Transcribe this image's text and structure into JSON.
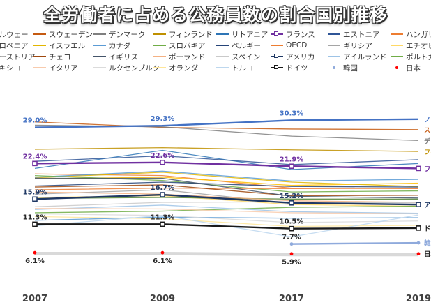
{
  "title": "全労働者に占める公務員数の割合国別推移",
  "chart_data": {
    "type": "line",
    "x": [
      "2007",
      "2009",
      "2017",
      "2019"
    ],
    "ylim": [
      0,
      38
    ],
    "grid": false,
    "legend_position": "top",
    "series": [
      {
        "name": "ノルウェー",
        "color": "#4472c4",
        "values": [
          29.0,
          29.3,
          30.3,
          30.5
        ],
        "end_label": "ノ",
        "labels": [
          "29.0%",
          "29.3%",
          "30.3%",
          null
        ]
      },
      {
        "name": "スウェーデン",
        "color": "#c55a11",
        "values": [
          30.0,
          29.0,
          28.7,
          28.6
        ],
        "end_label": "ス"
      },
      {
        "name": "デンマーク",
        "color": "#7f7f7f",
        "values": [
          29.4,
          29.1,
          27.4,
          26.6
        ],
        "end_label": "デ"
      },
      {
        "name": "フィンランド",
        "color": "#bf9000",
        "values": [
          25.0,
          25.3,
          24.9,
          24.6
        ],
        "end_label": "フィ"
      },
      {
        "name": "リトアニア",
        "color": "#2e75b6",
        "values": [
          21.5,
          24.8,
          21.3,
          22.4
        ]
      },
      {
        "name": "フランス",
        "color": "#7030a0",
        "values": [
          22.4,
          22.6,
          21.9,
          21.5
        ],
        "end_label": "フラ",
        "labels": [
          "22.4%",
          "22.6%",
          "21.9%",
          null
        ],
        "marker": "square"
      },
      {
        "name": "エストニア",
        "color": "#2f5597",
        "values": [
          22.8,
          23.8,
          22.2,
          23.1
        ]
      },
      {
        "name": "ハンガリー",
        "color": "#ed7d31",
        "values": [
          20.5,
          20.2,
          17.9,
          17.8
        ]
      },
      {
        "name": "スロベニア",
        "color": "#ffc000",
        "values": [
          19.6,
          19.9,
          18.4,
          18.8
        ]
      },
      {
        "name": "イスラエル",
        "color": "#e2b600",
        "values": [
          19.8,
          20.8,
          19.0,
          18.2
        ]
      },
      {
        "name": "カナダ",
        "color": "#5b9bd5",
        "values": [
          19.9,
          21.0,
          19.2,
          19.5
        ]
      },
      {
        "name": "スロバキア",
        "color": "#70ad47",
        "values": [
          20.2,
          19.3,
          17.2,
          17.4
        ]
      },
      {
        "name": "ベルギー",
        "color": "#264478",
        "values": [
          18.3,
          19.0,
          18.2,
          18.1
        ]
      },
      {
        "name": "OECD",
        "color": "#ed7d31",
        "values": [
          17.6,
          17.9,
          17.8,
          17.9
        ]
      },
      {
        "name": "ギリシア",
        "color": "#a5a5a5",
        "values": [
          16.8,
          17.6,
          15.1,
          15.3
        ]
      },
      {
        "name": "エチオピア",
        "color": "#ffd966",
        "values": [
          16.2,
          16.5,
          14.9,
          14.6
        ]
      },
      {
        "name": "オーストリア",
        "color": "#548235",
        "values": [
          16.0,
          16.2,
          15.9,
          15.9
        ]
      },
      {
        "name": "チェコ",
        "color": "#9e480e",
        "values": [
          18.1,
          18.5,
          16.5,
          16.6
        ]
      },
      {
        "name": "イギリス",
        "color": "#44546a",
        "values": [
          19.7,
          19.7,
          16.4,
          16.1
        ]
      },
      {
        "name": "ポーランド",
        "color": "#f4b183",
        "values": [
          17.2,
          16.8,
          15.6,
          15.3
        ]
      },
      {
        "name": "スペイン",
        "color": "#c9c9c9",
        "values": [
          14.5,
          15.3,
          15.4,
          15.2
        ]
      },
      {
        "name": "アメリカ",
        "color": "#1f3864",
        "values": [
          15.9,
          16.7,
          15.2,
          14.9
        ],
        "end_label": "アメ",
        "labels": [
          "15.9%",
          "16.7%",
          "15.2%",
          null
        ],
        "marker": "square"
      },
      {
        "name": "アイルランド",
        "color": "#9dc3e6",
        "values": [
          14.0,
          14.8,
          13.6,
          13.3
        ]
      },
      {
        "name": "ポルトガル",
        "color": "#70ad47",
        "values": [
          13.4,
          13.7,
          14.4,
          14.6
        ]
      },
      {
        "name": "メキシコ",
        "color": "#5b9bd5",
        "values": [
          12.0,
          12.6,
          12.4,
          12.5
        ]
      },
      {
        "name": "イタリア",
        "color": "#f8cbad",
        "values": [
          14.2,
          14.1,
          13.4,
          13.2
        ]
      },
      {
        "name": "ルクセンブルク",
        "color": "#dbdbdb",
        "values": [
          13.2,
          12.9,
          11.6,
          11.9
        ]
      },
      {
        "name": "オランダ",
        "color": "#ffe699",
        "values": [
          12.7,
          12.3,
          10.9,
          11.1
        ]
      },
      {
        "name": "トルコ",
        "color": "#bdd7ee",
        "values": [
          11.0,
          12.9,
          9.0,
          13.0
        ]
      },
      {
        "name": "ドイツ",
        "color": "#1a1a1a",
        "values": [
          11.3,
          11.3,
          10.5,
          10.6
        ],
        "end_label": "ドイ",
        "labels": [
          "11.3%",
          "11.3%",
          "10.5%",
          null
        ],
        "marker": "square"
      },
      {
        "name": "韓国",
        "color": "#8faadc",
        "values": [
          null,
          null,
          7.7,
          7.9
        ],
        "end_label": "韓国",
        "labels": [
          null,
          null,
          "7.7%",
          null
        ],
        "marker": "dot"
      },
      {
        "name": "日本",
        "color": "#ff0000",
        "values": [
          6.1,
          6.1,
          5.9,
          5.9
        ],
        "end_label": "日本",
        "labels": [
          "6.1%",
          "6.1%",
          "5.9%",
          null
        ],
        "marker": "dot",
        "line_color": "#d9d9d9"
      }
    ]
  }
}
